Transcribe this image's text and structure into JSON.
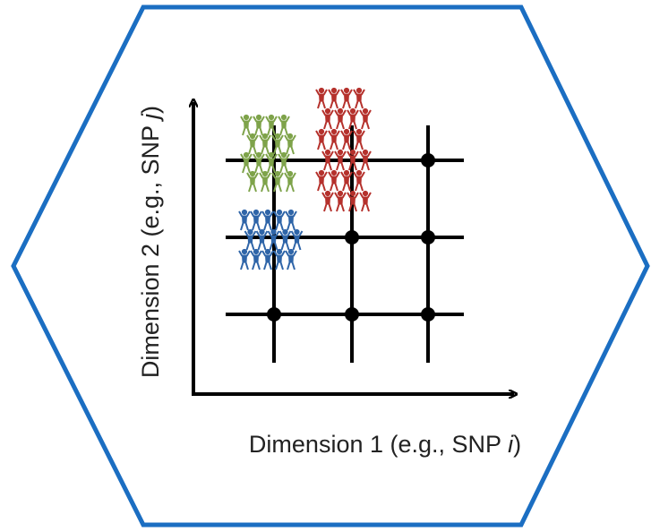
{
  "x_axis_label": {
    "text": "Dimension 1 (e.g., SNP ",
    "variable": "i",
    "close": ")"
  },
  "y_axis_label": {
    "text": "Dimension 2 (e.g., SNP ",
    "variable": "j",
    "close": ")"
  }
}
